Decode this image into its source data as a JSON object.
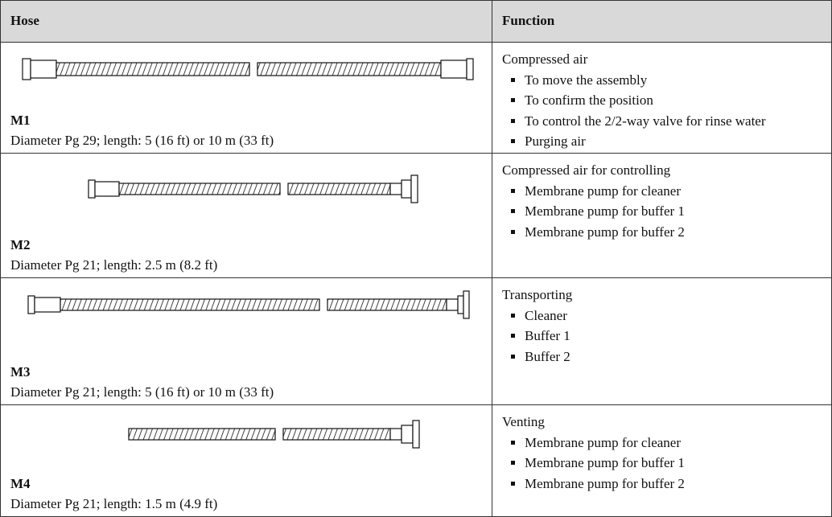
{
  "table": {
    "header": [
      "Hose",
      "Function"
    ],
    "rows": [
      {
        "id": "M1",
        "description": "Diameter Pg 29; length: 5 (16 ft) or 10 m (33 ft)",
        "function_title": "Compressed air",
        "function_items": [
          "To move the assembly",
          "To confirm the position",
          "To control the 2/2-way valve for rinse water",
          "Purging air"
        ]
      },
      {
        "id": "M2",
        "description": "Diameter Pg 21; length: 2.5 m (8.2 ft)",
        "function_title": "Compressed air for controlling",
        "function_items": [
          "Membrane pump for cleaner",
          "Membrane pump for buffer 1",
          "Membrane pump for buffer 2"
        ]
      },
      {
        "id": "M3",
        "description": "Diameter Pg 21; length: 5 (16 ft) or 10 m (33 ft)",
        "function_title": "Transporting",
        "function_items": [
          "Cleaner",
          "Buffer 1",
          "Buffer 2"
        ]
      },
      {
        "id": "M4",
        "description": "Diameter Pg 21; length: 1.5 m (4.9 ft)",
        "function_title": "Venting",
        "function_items": [
          "Membrane pump for cleaner",
          "Membrane pump for buffer 1",
          "Membrane pump for buffer 2"
        ]
      }
    ]
  }
}
